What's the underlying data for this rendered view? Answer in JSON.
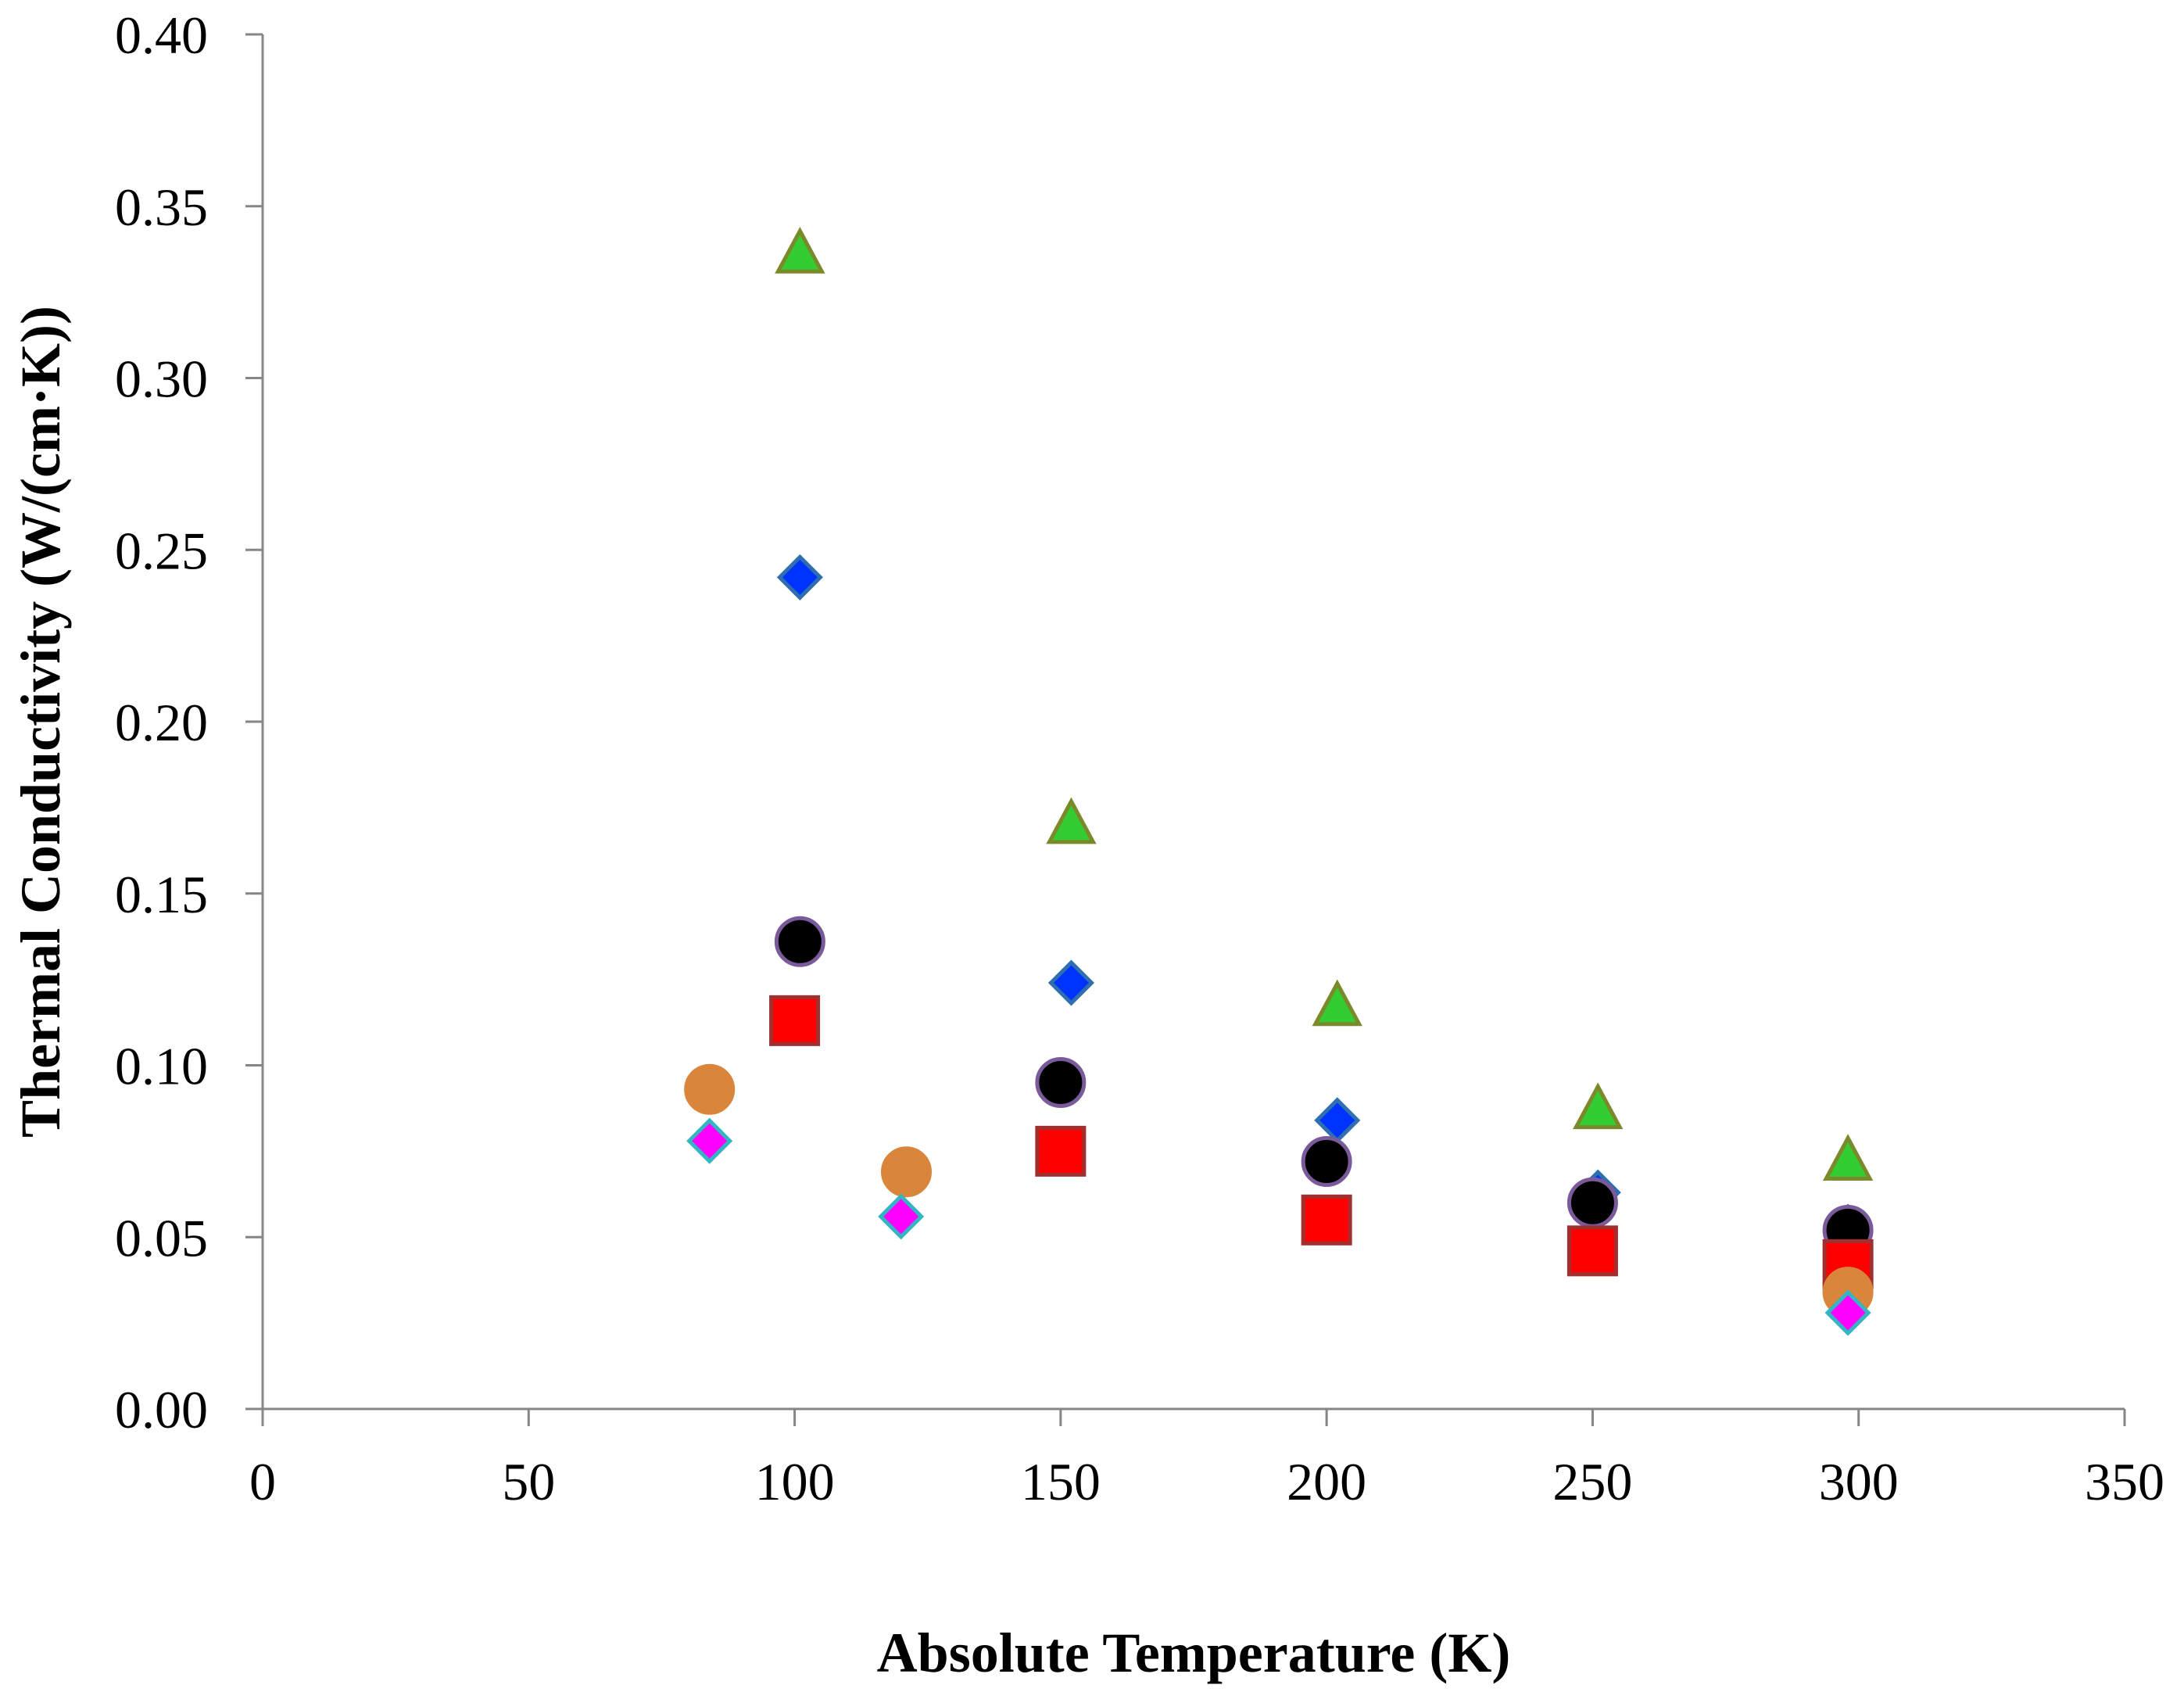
{
  "chart_data": {
    "type": "scatter",
    "xlabel": "Absolute Temperature (K)",
    "ylabel": "Thermal Conductivity (W/(cm·K))",
    "xlim": [
      0,
      350
    ],
    "ylim": [
      0,
      0.4
    ],
    "x_ticks": [
      0,
      50,
      100,
      150,
      200,
      250,
      300,
      350
    ],
    "x_tick_labels": [
      "0",
      "50",
      "100",
      "150",
      "200",
      "250",
      "300",
      "350"
    ],
    "y_ticks": [
      0,
      0.05,
      0.1,
      0.15,
      0.2,
      0.25,
      0.3,
      0.35,
      0.4
    ],
    "y_tick_labels": [
      "0.00",
      "0.05",
      "0.10",
      "0.15",
      "0.20",
      "0.25",
      "0.30",
      "0.35",
      "0.40"
    ],
    "grid": false,
    "legend": "none",
    "series": [
      {
        "marker": "triangle",
        "color": "#33cc33",
        "edge_color": "#7a8a2a",
        "points": [
          [
            101,
            0.336
          ],
          [
            152,
            0.17
          ],
          [
            202,
            0.117
          ],
          [
            251,
            0.087
          ],
          [
            298,
            0.072
          ]
        ]
      },
      {
        "marker": "diamond",
        "color": "#0033ff",
        "edge_color": "#2f6fb0",
        "points": [
          [
            101,
            0.242
          ],
          [
            152,
            0.124
          ],
          [
            202,
            0.084
          ],
          [
            251,
            0.063
          ],
          [
            298,
            0.053
          ]
        ]
      },
      {
        "marker": "circle",
        "color": "#000000",
        "edge_color": "#7a5a9a",
        "points": [
          [
            101,
            0.136
          ],
          [
            150,
            0.095
          ],
          [
            200,
            0.072
          ],
          [
            250,
            0.06
          ],
          [
            298,
            0.052
          ]
        ]
      },
      {
        "marker": "square",
        "color": "#ff0000",
        "edge_color": "#a03030",
        "points": [
          [
            100,
            0.113
          ],
          [
            150,
            0.075
          ],
          [
            200,
            0.055
          ],
          [
            250,
            0.046
          ],
          [
            298,
            0.042
          ]
        ]
      },
      {
        "marker": "circle",
        "color": "#d9853b",
        "edge_color": "#d9853b",
        "points": [
          [
            84,
            0.093
          ],
          [
            121,
            0.069
          ],
          [
            298,
            0.034
          ]
        ]
      },
      {
        "marker": "diamond",
        "color": "#ff00ff",
        "edge_color": "#33b5c4",
        "points": [
          [
            84,
            0.078
          ],
          [
            120,
            0.056
          ],
          [
            298,
            0.028
          ]
        ]
      }
    ]
  }
}
